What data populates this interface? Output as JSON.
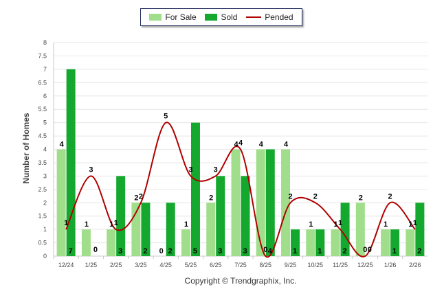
{
  "chart_data": {
    "type": "bar",
    "title": "",
    "xlabel": "",
    "ylabel": "Number of Homes",
    "ylim": [
      0,
      8
    ],
    "yticks": [
      "0",
      "0.5",
      "1",
      "1.5",
      "2",
      "2.5",
      "3",
      "3.5",
      "4",
      "4.5",
      "5",
      "5.5",
      "6",
      "6.5",
      "7",
      "7.5",
      "8"
    ],
    "categories": [
      "12/24",
      "1/25",
      "2/25",
      "3/25",
      "4/25",
      "5/25",
      "6/25",
      "7/25",
      "8/25",
      "9/25",
      "10/25",
      "11/25",
      "12/25",
      "1/26",
      "2/26"
    ],
    "series": [
      {
        "name": "For Sale",
        "kind": "bar",
        "color": "#a0de8b",
        "values": [
          4,
          1,
          1,
          2,
          0,
          1,
          2,
          4,
          4,
          4,
          1,
          1,
          2,
          1,
          1
        ],
        "labels": [
          "4",
          "1",
          "1",
          "2",
          "0",
          "1",
          "2",
          "4",
          "4",
          "4",
          "1",
          "1",
          "2",
          "1",
          "1"
        ]
      },
      {
        "name": "Sold",
        "kind": "bar",
        "color": "#15a82e",
        "values": [
          7,
          0,
          3,
          2,
          2,
          5,
          3,
          3,
          4,
          1,
          1,
          2,
          0,
          1,
          2
        ],
        "labels": [
          "7",
          "0",
          "3",
          "2",
          "2",
          "5",
          "3",
          "3",
          "4",
          "1",
          "1",
          "2",
          "0",
          "1",
          "2"
        ]
      },
      {
        "name": "Pended",
        "kind": "line",
        "color": "#b00000",
        "values": [
          1,
          3,
          1,
          2,
          5,
          3,
          3,
          4,
          0,
          2,
          2,
          1,
          0,
          2,
          1
        ],
        "labels": [
          "1",
          "3",
          "1",
          "2",
          "5",
          "3",
          "3",
          "4",
          "0",
          "2",
          "2",
          "1",
          "0",
          "2",
          "1"
        ]
      }
    ],
    "legend_position": "top-center",
    "grid": true
  },
  "footer": {
    "copyright": "Copyright © Trendgraphix, Inc."
  }
}
